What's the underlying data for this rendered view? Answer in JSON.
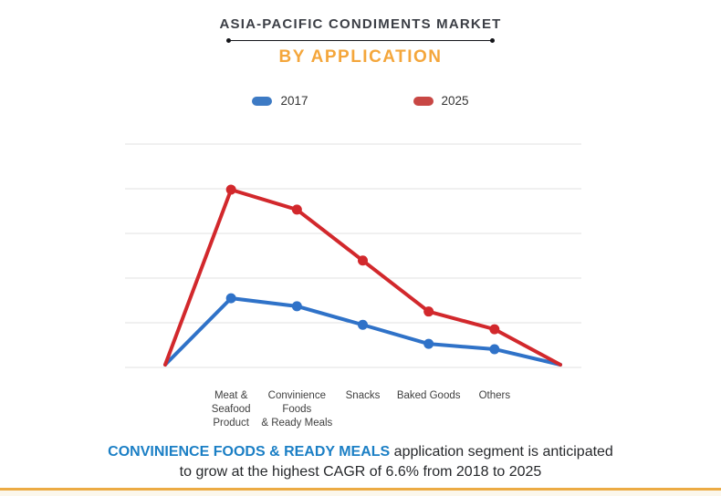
{
  "header": {
    "title": "ASIA-PACIFIC CONDIMENTS MARKET",
    "subtitle": "BY APPLICATION"
  },
  "legend": {
    "items": [
      {
        "label": "2017",
        "color": "#3d7ac4"
      },
      {
        "label": "2025",
        "color": "#c84744"
      }
    ]
  },
  "chart_data": {
    "type": "line",
    "title": "ASIA-PACIFIC CONDIMENTS MARKET BY APPLICATION",
    "x_labels": [
      "",
      "Meat &\nSeafood\nProduct",
      "Convinience\nFoods\n& Ready Meals",
      "Snacks",
      "Baked Goods",
      "Others",
      ""
    ],
    "series": [
      {
        "name": "2017",
        "color": "#2f72c8",
        "values": [
          0,
          1.5,
          1.32,
          0.9,
          0.47,
          0.35,
          0
        ]
      },
      {
        "name": "2025",
        "color": "#d2282c",
        "values": [
          0,
          3.95,
          3.5,
          2.35,
          1.2,
          0.8,
          0
        ]
      }
    ],
    "ylim": [
      0,
      5
    ],
    "y_axis_labels": "none",
    "gridlines": "horizontal",
    "gridline_count": 6,
    "legend_position": "top",
    "marker": "circle"
  },
  "footer": {
    "highlight": "CONVINIENCE FOODS & READY MEALS",
    "rest": " application segment is anticipated",
    "line2": "to grow at the highest CAGR of 6.6% from 2018 to 2025"
  },
  "colors": {
    "accent_orange": "#f4a63b",
    "caption_blue": "#1b7fc5",
    "series_2017": "#2f72c8",
    "series_2025": "#d2282c",
    "bottom_bar": "#ecab44"
  }
}
